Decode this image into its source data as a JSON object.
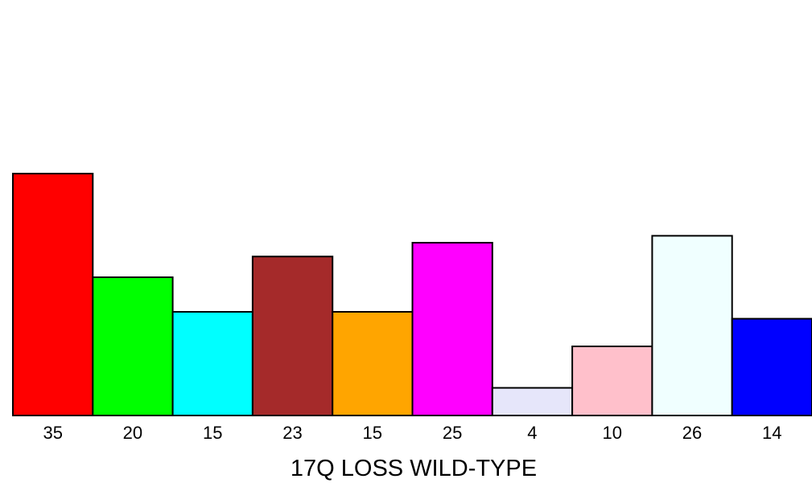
{
  "chart_data": {
    "type": "bar",
    "xlabel": "17Q LOSS WILD-TYPE",
    "ylabel": "",
    "categories": [
      "35",
      "20",
      "15",
      "23",
      "15",
      "25",
      "4",
      "10",
      "26",
      "14"
    ],
    "values": [
      35,
      20,
      15,
      23,
      15,
      25,
      4,
      10,
      26,
      14
    ],
    "colors": [
      "#ff0000",
      "#00ff00",
      "#00ffff",
      "#a52a2a",
      "#ffa500",
      "#ff00ff",
      "#e6e6fa",
      "#ffc0cb",
      "#f0ffff",
      "#0000ff"
    ],
    "ylim": [
      0,
      35
    ],
    "grid": false,
    "legend": "none"
  }
}
